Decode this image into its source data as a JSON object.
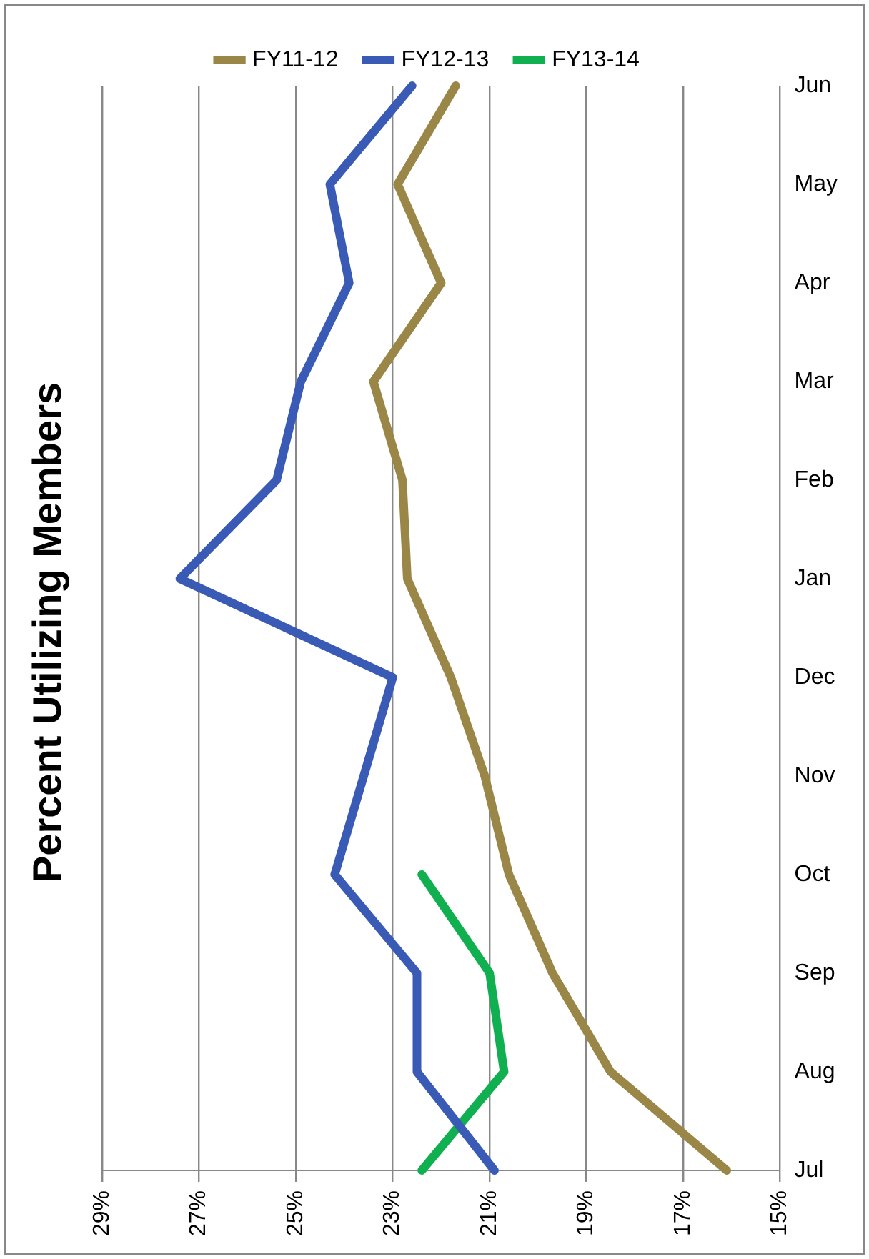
{
  "chart_data": {
    "type": "line",
    "title": "Percent Utilizing Members",
    "categories": [
      "Jun",
      "May",
      "Apr",
      "Mar",
      "Feb",
      "Jan",
      "Dec",
      "Nov",
      "Oct",
      "Sep",
      "Aug",
      "Jul"
    ],
    "series": [
      {
        "name": "FY11-12",
        "color": "#9a8748",
        "values": [
          21.7,
          22.9,
          22.0,
          23.4,
          22.8,
          22.7,
          21.8,
          21.1,
          20.6,
          19.7,
          18.5,
          16.1
        ]
      },
      {
        "name": "FY12-13",
        "color": "#3a5bb5",
        "values": [
          22.6,
          24.3,
          23.9,
          24.9,
          25.4,
          27.4,
          23.0,
          23.6,
          24.2,
          22.5,
          22.5,
          20.9
        ]
      },
      {
        "name": "FY13-14",
        "color": "#10b050",
        "values": [
          null,
          null,
          null,
          null,
          null,
          null,
          null,
          null,
          22.4,
          21.0,
          20.7,
          22.4
        ]
      }
    ],
    "orientation": "horizontal",
    "xlim": [
      29,
      15
    ],
    "xticks": [
      {
        "value": 15,
        "label": "15%"
      },
      {
        "value": 17,
        "label": "17%"
      },
      {
        "value": 19,
        "label": "19%"
      },
      {
        "value": 21,
        "label": "21%"
      },
      {
        "value": 23,
        "label": "23%"
      },
      {
        "value": 25,
        "label": "25%"
      },
      {
        "value": 27,
        "label": "27%"
      },
      {
        "value": 29,
        "label": "29%"
      }
    ],
    "grid": "x",
    "legend": "top",
    "marker": "none",
    "line_style": "solid"
  }
}
